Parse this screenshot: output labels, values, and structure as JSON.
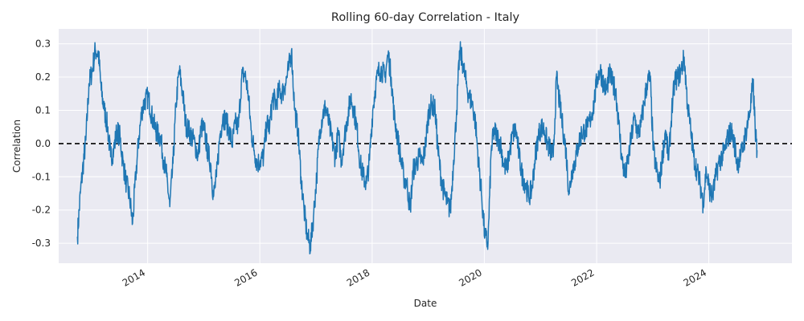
{
  "chart_data": {
    "type": "line",
    "title": "Rolling 60-day Correlation - Italy",
    "xlabel": "Date",
    "ylabel": "Correlation",
    "xlim": [
      "2012-06-01",
      "2025-06-25"
    ],
    "ylim": [
      -0.36,
      0.345
    ],
    "x_ticks": [
      "2014-01-01",
      "2016-01-01",
      "2018-01-01",
      "2020-01-01",
      "2022-01-01",
      "2024-01-01"
    ],
    "x_tick_labels": [
      "2014",
      "2016",
      "2018",
      "2020",
      "2022",
      "2024"
    ],
    "y_ticks": [
      -0.3,
      -0.2,
      -0.1,
      0.0,
      0.1,
      0.2,
      0.3
    ],
    "y_tick_labels": [
      "-0.3",
      "-0.2",
      "-0.1",
      "0.0",
      "0.1",
      "0.2",
      "0.3"
    ],
    "grid": true,
    "colors": {
      "line": "#1f77b4",
      "plot_bg": "#eaeaf2",
      "grid": "#ffffff",
      "reference_line": "#000000"
    },
    "reference_line": {
      "y": 0.0,
      "style": "dashed"
    },
    "series": [
      {
        "x": [
          "2012-10-01",
          "2012-10-20",
          "2012-11-10",
          "2012-11-25",
          "2012-12-15",
          "2013-01-05",
          "2013-01-25",
          "2013-02-15",
          "2013-03-05",
          "2013-03-25",
          "2013-04-15",
          "2013-05-05",
          "2013-05-25",
          "2013-06-15",
          "2013-07-05",
          "2013-07-25",
          "2013-08-15",
          "2013-09-05",
          "2013-09-25",
          "2013-10-15",
          "2013-11-05",
          "2013-11-25",
          "2013-12-15",
          "2014-01-05",
          "2014-01-25",
          "2014-02-15",
          "2014-03-05",
          "2014-03-25",
          "2014-04-15",
          "2014-05-05",
          "2014-05-25",
          "2014-06-15",
          "2014-07-05",
          "2014-07-25",
          "2014-08-15",
          "2014-09-05",
          "2014-09-25",
          "2014-10-15",
          "2014-11-05",
          "2014-11-25",
          "2014-12-15",
          "2015-01-05",
          "2015-01-25",
          "2015-02-15",
          "2015-03-05",
          "2015-03-25",
          "2015-04-15",
          "2015-05-05",
          "2015-05-25",
          "2015-06-15",
          "2015-07-05",
          "2015-07-25",
          "2015-08-15",
          "2015-09-05",
          "2015-09-25",
          "2015-10-15",
          "2015-11-05",
          "2015-11-25",
          "2015-12-15",
          "2016-01-05",
          "2016-01-25",
          "2016-02-15",
          "2016-03-05",
          "2016-03-25",
          "2016-04-15",
          "2016-05-05",
          "2016-05-25",
          "2016-06-15",
          "2016-07-05",
          "2016-07-25",
          "2016-08-15",
          "2016-09-05",
          "2016-09-25",
          "2016-10-15",
          "2016-11-05",
          "2016-11-25",
          "2016-12-15",
          "2017-01-05",
          "2017-01-25",
          "2017-02-15",
          "2017-03-05",
          "2017-03-25",
          "2017-04-15",
          "2017-05-05",
          "2017-05-25",
          "2017-06-15",
          "2017-07-05",
          "2017-07-25",
          "2017-08-15",
          "2017-09-05",
          "2017-09-25",
          "2017-10-15",
          "2017-11-05",
          "2017-11-25",
          "2017-12-15",
          "2018-01-05",
          "2018-01-25",
          "2018-02-15",
          "2018-03-05",
          "2018-03-25",
          "2018-04-15",
          "2018-05-05",
          "2018-05-25",
          "2018-06-15",
          "2018-07-05",
          "2018-07-25",
          "2018-08-15",
          "2018-09-05",
          "2018-09-25",
          "2018-10-15",
          "2018-11-05",
          "2018-11-25",
          "2018-12-15",
          "2019-01-05",
          "2019-01-25",
          "2019-02-15",
          "2019-03-05",
          "2019-03-25",
          "2019-04-15",
          "2019-05-05",
          "2019-05-25",
          "2019-06-15",
          "2019-07-05",
          "2019-07-25",
          "2019-08-15",
          "2019-09-05",
          "2019-09-25",
          "2019-10-15",
          "2019-11-05",
          "2019-11-25",
          "2019-12-15",
          "2020-01-05",
          "2020-01-25",
          "2020-02-15",
          "2020-03-05",
          "2020-03-25",
          "2020-04-15",
          "2020-05-05",
          "2020-05-25",
          "2020-06-15",
          "2020-07-05",
          "2020-07-25",
          "2020-08-15",
          "2020-09-05",
          "2020-09-25",
          "2020-10-15",
          "2020-11-05",
          "2020-11-25",
          "2020-12-15",
          "2021-01-05",
          "2021-01-25",
          "2021-02-15",
          "2021-03-05",
          "2021-03-25",
          "2021-04-15",
          "2021-05-05",
          "2021-05-25",
          "2021-06-15",
          "2021-07-05",
          "2021-07-25",
          "2021-08-15",
          "2021-09-05",
          "2021-09-25",
          "2021-10-15",
          "2021-11-05",
          "2021-11-25",
          "2021-12-15",
          "2022-01-05",
          "2022-01-25",
          "2022-02-15",
          "2022-03-05",
          "2022-03-25",
          "2022-04-15",
          "2022-05-05",
          "2022-05-25",
          "2022-06-15",
          "2022-07-05",
          "2022-07-25",
          "2022-08-15",
          "2022-09-05",
          "2022-09-25",
          "2022-10-15",
          "2022-11-05",
          "2022-11-25",
          "2022-12-15",
          "2023-01-05",
          "2023-01-25",
          "2023-02-15",
          "2023-03-05",
          "2023-03-25",
          "2023-04-15",
          "2023-05-05",
          "2023-05-25",
          "2023-06-15",
          "2023-07-05",
          "2023-07-25",
          "2023-08-15",
          "2023-09-05",
          "2023-09-25",
          "2023-10-15",
          "2023-11-05",
          "2023-11-25",
          "2023-12-15",
          "2024-01-05",
          "2024-01-25",
          "2024-02-15",
          "2024-03-05",
          "2024-03-25",
          "2024-04-15",
          "2024-05-05",
          "2024-05-25",
          "2024-06-15",
          "2024-07-05",
          "2024-07-25",
          "2024-08-15",
          "2024-09-05",
          "2024-09-25",
          "2024-10-15",
          "2024-11-01",
          "2024-11-10"
        ],
        "values": [
          -0.28,
          -0.15,
          -0.05,
          0.01,
          0.18,
          0.22,
          0.28,
          0.27,
          0.16,
          0.1,
          0.05,
          -0.04,
          -0.02,
          0.04,
          0.02,
          -0.06,
          -0.12,
          -0.16,
          -0.24,
          -0.1,
          0.02,
          0.1,
          0.13,
          0.14,
          0.09,
          0.05,
          0.03,
          0.02,
          -0.05,
          -0.1,
          -0.19,
          -0.06,
          0.12,
          0.22,
          0.16,
          0.06,
          0.04,
          0.02,
          0.0,
          -0.04,
          0.05,
          0.04,
          -0.02,
          -0.06,
          -0.16,
          -0.1,
          0.02,
          0.08,
          0.07,
          0.04,
          0.0,
          0.06,
          0.05,
          0.2,
          0.21,
          0.16,
          0.04,
          -0.02,
          -0.06,
          -0.05,
          -0.04,
          0.06,
          0.05,
          0.14,
          0.12,
          0.16,
          0.15,
          0.18,
          0.22,
          0.28,
          0.1,
          0.04,
          -0.1,
          -0.2,
          -0.28,
          -0.31,
          -0.22,
          -0.1,
          0.04,
          0.09,
          0.11,
          0.06,
          0.01,
          -0.04,
          0.03,
          -0.05,
          0.02,
          0.08,
          0.14,
          0.1,
          0.04,
          -0.06,
          -0.1,
          -0.12,
          -0.05,
          0.1,
          0.18,
          0.22,
          0.22,
          0.2,
          0.27,
          0.2,
          0.08,
          0.02,
          -0.04,
          -0.1,
          -0.12,
          -0.2,
          -0.08,
          -0.06,
          -0.04,
          -0.06,
          0.0,
          0.1,
          0.12,
          0.1,
          -0.02,
          -0.1,
          -0.15,
          -0.18,
          -0.2,
          -0.05,
          0.1,
          0.28,
          0.24,
          0.18,
          0.14,
          0.12,
          0.06,
          -0.06,
          -0.16,
          -0.28,
          -0.3,
          -0.02,
          0.04,
          0.02,
          0.0,
          -0.06,
          -0.08,
          -0.02,
          0.03,
          0.04,
          -0.04,
          -0.1,
          -0.12,
          -0.16,
          -0.14,
          -0.05,
          0.02,
          0.05,
          0.04,
          0.0,
          -0.02,
          -0.04,
          0.2,
          0.12,
          0.05,
          -0.02,
          -0.15,
          -0.08,
          -0.05,
          0.0,
          0.03,
          0.04,
          0.05,
          0.08,
          0.12,
          0.2,
          0.22,
          0.18,
          0.16,
          0.21,
          0.18,
          0.16,
          0.06,
          -0.05,
          -0.1,
          -0.05,
          0.02,
          0.08,
          0.03,
          0.05,
          0.12,
          0.18,
          0.2,
          -0.02,
          -0.08,
          -0.12,
          -0.04,
          0.04,
          -0.05,
          0.1,
          0.19,
          0.2,
          0.22,
          0.26,
          0.12,
          0.04,
          -0.04,
          -0.08,
          -0.12,
          -0.18,
          -0.08,
          -0.14,
          -0.16,
          -0.1,
          -0.06,
          -0.04,
          -0.02,
          0.02,
          0.04,
          0.0,
          -0.06,
          -0.04,
          0.0,
          0.05,
          0.1,
          0.18,
          0.02,
          -0.02
        ]
      }
    ]
  }
}
